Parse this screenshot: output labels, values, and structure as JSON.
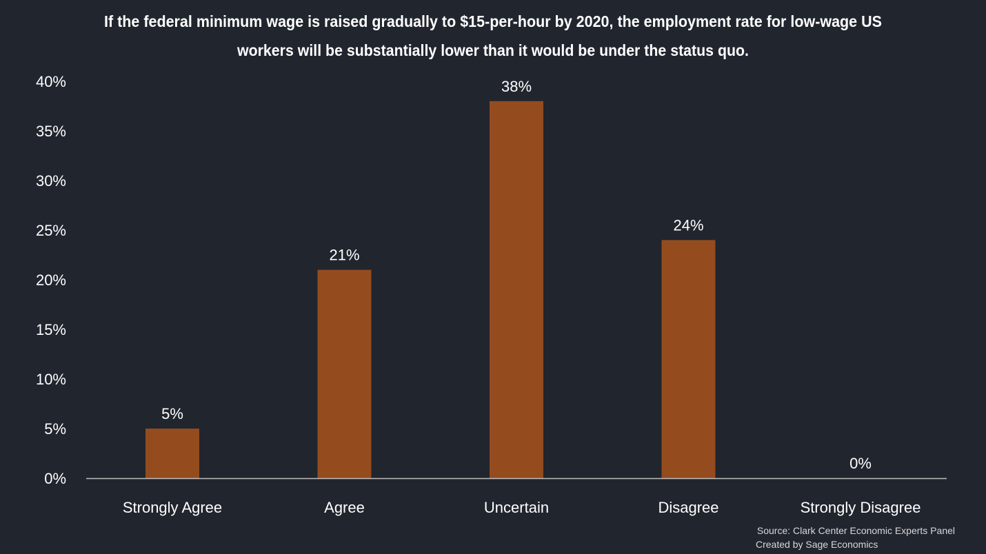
{
  "chart_data": {
    "type": "bar",
    "title_lines": [
      "If the federal minimum wage is raised gradually to $15-per-hour by 2020, the employment rate for low-wage US",
      "workers will be substantially lower than it would be under the status quo."
    ],
    "categories": [
      "Strongly Agree",
      "Agree",
      "Uncertain",
      "Disagree",
      "Strongly Disagree"
    ],
    "values": [
      5,
      21,
      38,
      24,
      0
    ],
    "value_labels": [
      "5%",
      "21%",
      "38%",
      "24%",
      "0%"
    ],
    "y_ticks": [
      "0%",
      "5%",
      "10%",
      "15%",
      "20%",
      "25%",
      "30%",
      "35%",
      "40%"
    ],
    "ylim": [
      0,
      40
    ],
    "xlabel": "",
    "ylabel": "",
    "grid": false,
    "legend": "none",
    "bar_color": "#944c1f",
    "axis_color": "#bfbfbf"
  },
  "footer": {
    "source": "Source: Clark Center Economic Experts Panel",
    "credit": "Created by Sage Economics"
  }
}
